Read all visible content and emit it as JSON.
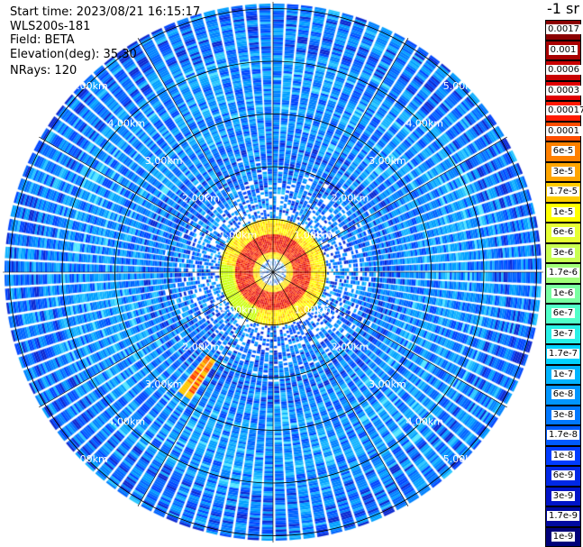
{
  "header": {
    "start_time": "Start time: 2023/08/21 16:15:17",
    "instrument": "WLS200s-181",
    "field": "Field: BETA",
    "elevation": "Elevation(deg): 35.30",
    "nrays": "NRays: 120"
  },
  "colorbar": {
    "title": "-1 sr",
    "labels": [
      "0.0017",
      "0.001",
      "0.0006",
      "0.0003",
      "0.00017",
      "0.0001",
      "6e-5",
      "3e-5",
      "1.7e-5",
      "1e-5",
      "6e-6",
      "3e-6",
      "1.7e-6",
      "1e-6",
      "6e-7",
      "3e-7",
      "1.7e-7",
      "1e-7",
      "6e-8",
      "3e-8",
      "1.7e-8",
      "1e-8",
      "6e-9",
      "3e-9",
      "1.7e-9",
      "1e-9"
    ],
    "colors": [
      "#8b0000",
      "#a80000",
      "#c80000",
      "#e00000",
      "#ff1a00",
      "#ff4d00",
      "#ff8000",
      "#ffa500",
      "#ffcc00",
      "#ffff00",
      "#e6ff33",
      "#c8ff50",
      "#a0ff78",
      "#78ffa0",
      "#50ffc8",
      "#28f0e6",
      "#00d2ff",
      "#00b4ff",
      "#0096ff",
      "#0078ff",
      "#005aff",
      "#003cff",
      "#0028e6",
      "#0014c8",
      "#000aa0",
      "#00007a"
    ]
  },
  "chart_data": {
    "type": "heatmap",
    "projection": "polar PPI",
    "field": "BETA",
    "nrays": 120,
    "elevation_deg": 35.3,
    "range_rings_km": [
      1,
      2,
      3,
      4,
      5
    ],
    "range_ring_labels": [
      "1.00km",
      "2.00km",
      "3.00km",
      "4.00km",
      "5.00km"
    ],
    "grid": true,
    "colorbar_placement": "right",
    "colorscale": "log",
    "value_range": [
      1e-09,
      0.0017
    ]
  }
}
